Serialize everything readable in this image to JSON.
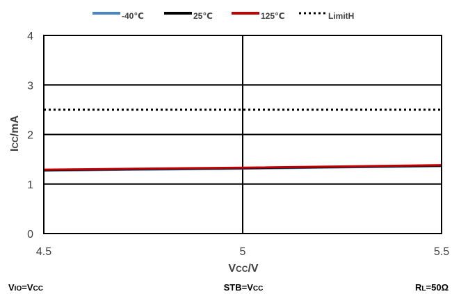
{
  "chart_data": {
    "type": "line",
    "xlabel": "Vcc/V",
    "ylabel": "Icc/mA",
    "xlim": [
      4.5,
      5.5
    ],
    "ylim": [
      0,
      4
    ],
    "x_ticks": [
      "4.5",
      "5",
      "5.5"
    ],
    "y_ticks": [
      "0",
      "1",
      "2",
      "3",
      "4"
    ],
    "grid": true,
    "legend_position": "top",
    "series": [
      {
        "name": "-40℃",
        "color": "#4a86c5",
        "style": "solid",
        "x": [
          4.5,
          5.0,
          5.5
        ],
        "y": [
          1.27,
          1.31,
          1.36
        ]
      },
      {
        "name": "25℃",
        "color": "#000000",
        "style": "solid",
        "x": [
          4.5,
          5.0,
          5.5
        ],
        "y": [
          1.28,
          1.32,
          1.37
        ]
      },
      {
        "name": "125℃",
        "color": "#c00000",
        "style": "solid",
        "x": [
          4.5,
          5.0,
          5.5
        ],
        "y": [
          1.29,
          1.33,
          1.38
        ]
      },
      {
        "name": "LimitH",
        "color": "#000000",
        "style": "dotted",
        "x": [
          4.5,
          5.5
        ],
        "y": [
          2.5,
          2.5
        ]
      }
    ],
    "conditions": [
      "VIO=VCC",
      "STB=VCC",
      "RL=50Ω"
    ]
  }
}
